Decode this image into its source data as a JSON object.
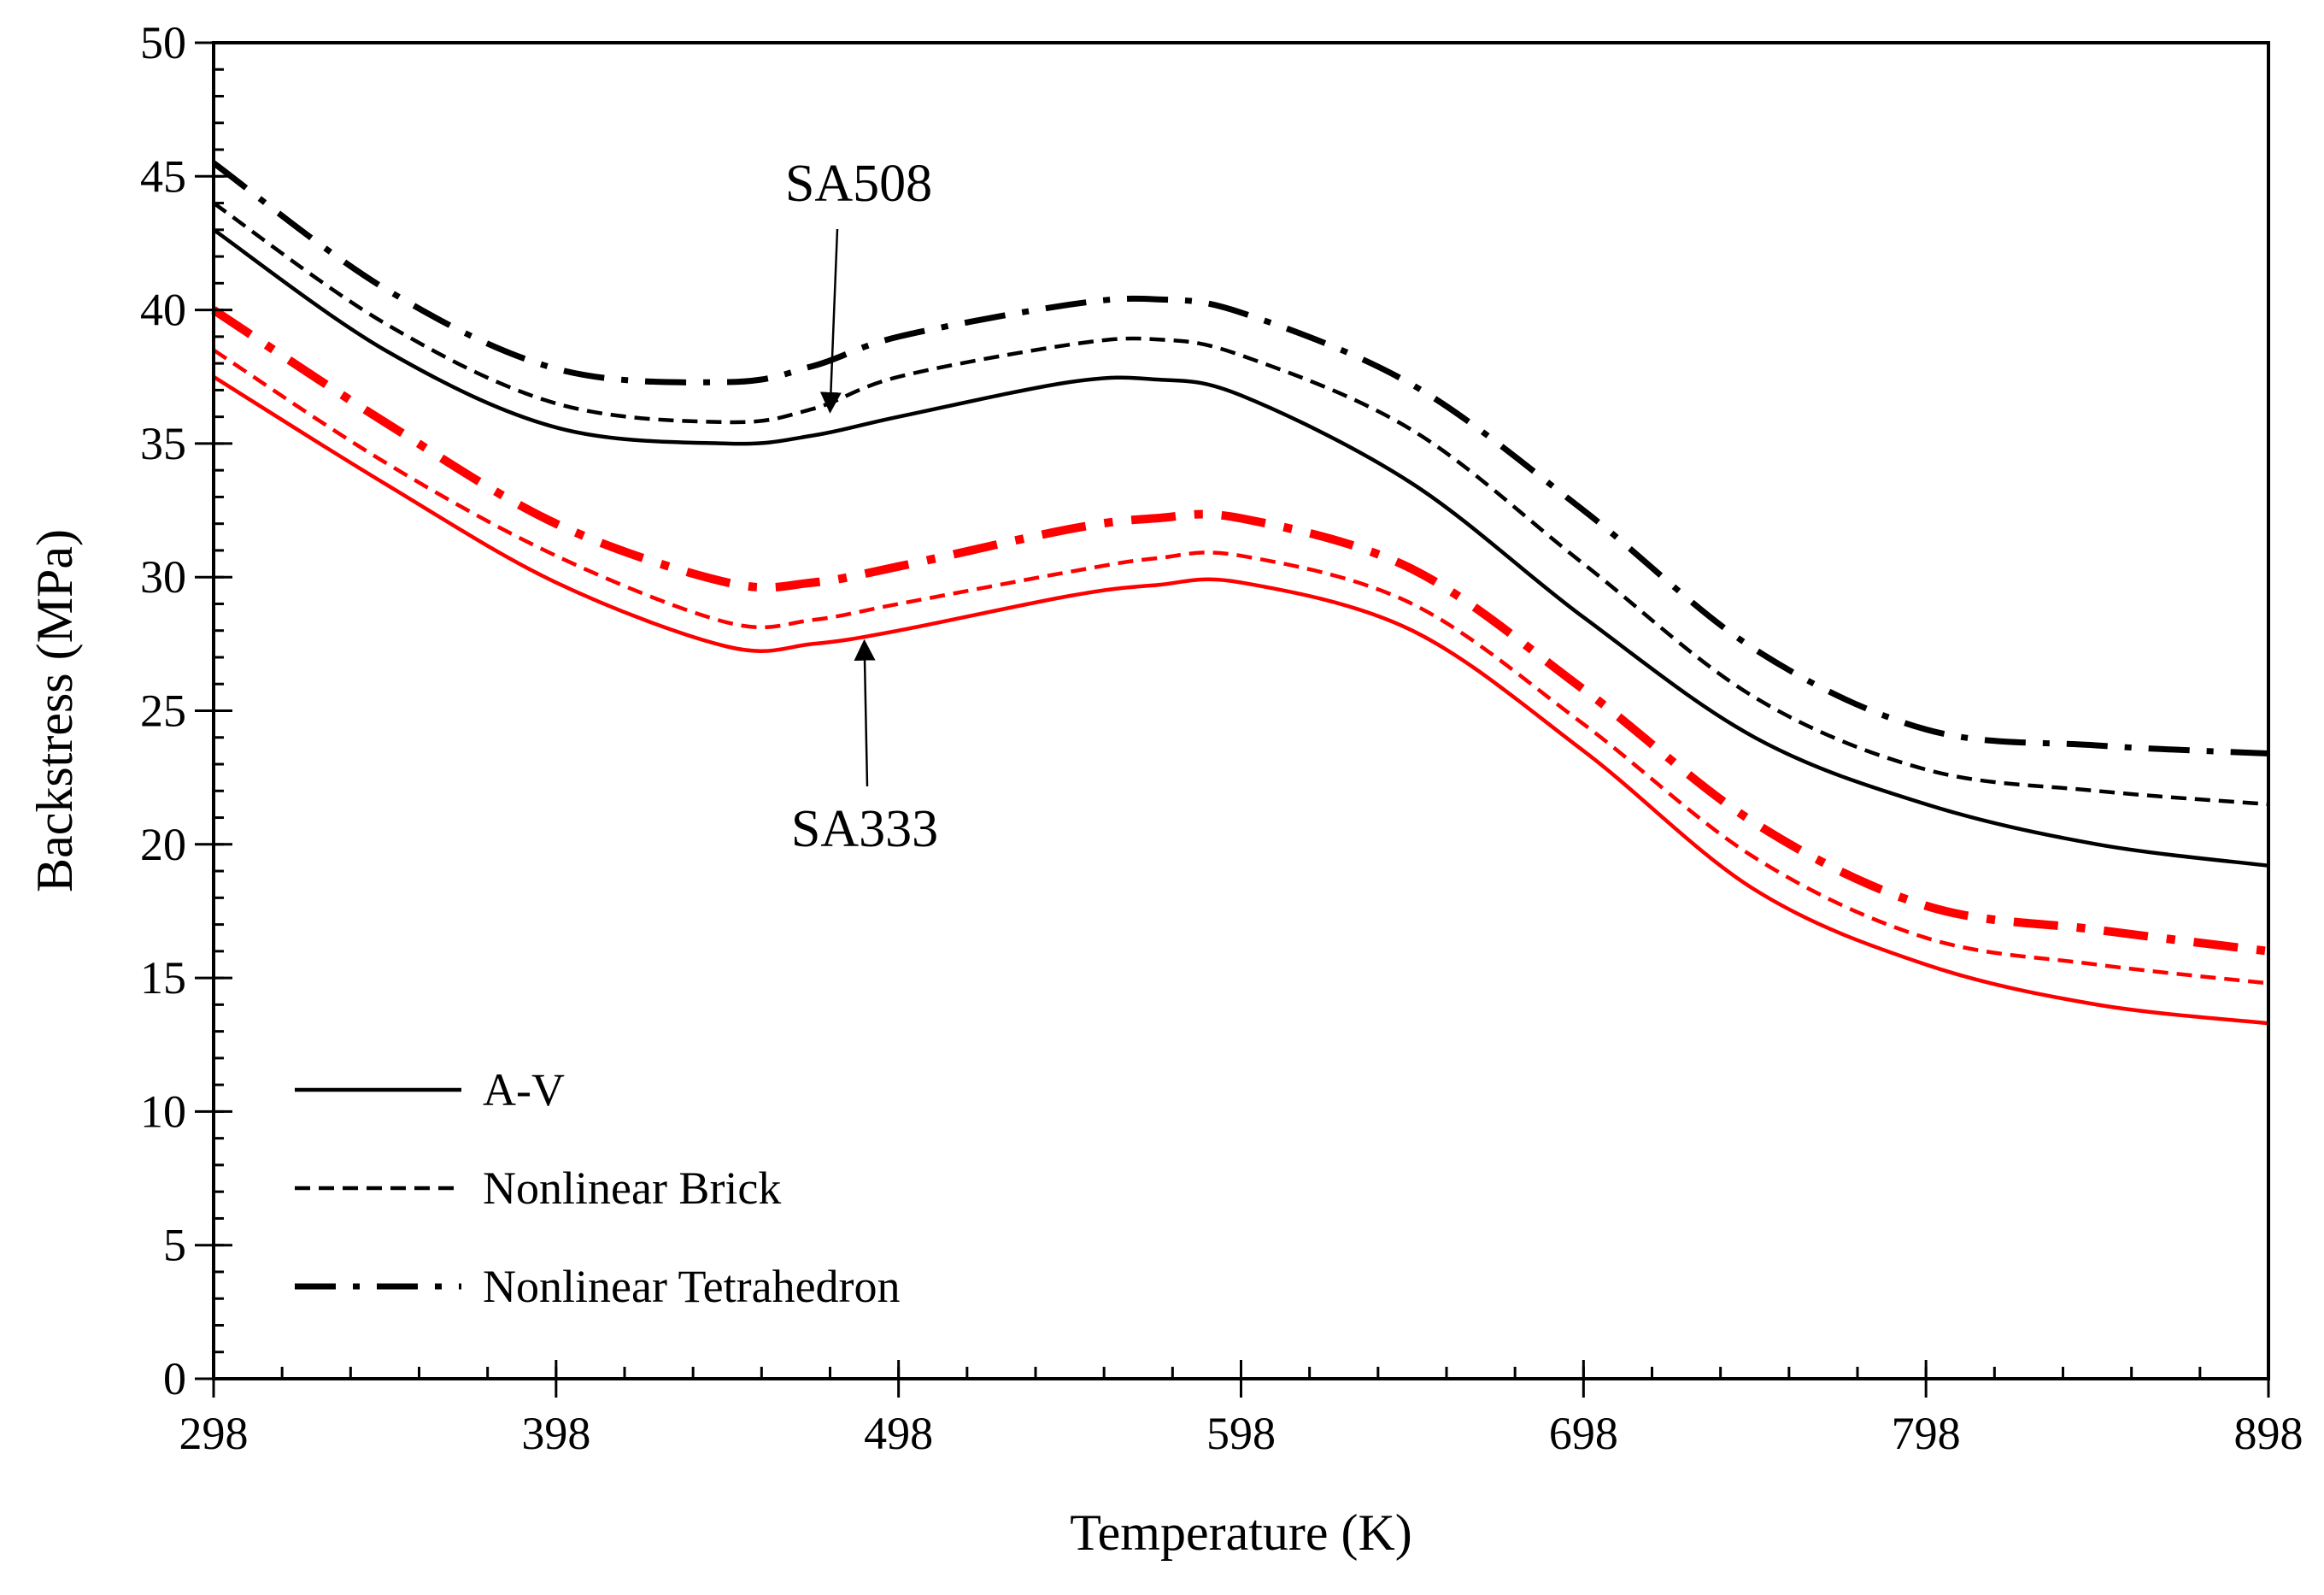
{
  "chart_data": {
    "type": "line",
    "title": "",
    "xlabel": "Temperature (K)",
    "ylabel": "Backstress (MPa)",
    "xlim": [
      298,
      898
    ],
    "ylim": [
      0,
      50
    ],
    "x_ticks": [
      298,
      398,
      498,
      598,
      698,
      798,
      898
    ],
    "y_ticks": [
      0,
      5,
      10,
      15,
      20,
      25,
      30,
      35,
      40,
      45,
      50
    ],
    "x_minor_step": 20,
    "y_minor_step": 1,
    "grid": false,
    "legend_position": "bottom-left",
    "legend": [
      {
        "label": "A-V",
        "style": "solid"
      },
      {
        "label": "Nonlinear Brick",
        "style": "dashed"
      },
      {
        "label": "Nonlinear Tetrahedron",
        "style": "dashdot"
      }
    ],
    "annotations": [
      {
        "text": "SA508",
        "points_to": {
          "x": 478,
          "y": 36.2
        }
      },
      {
        "text": "SA333",
        "points_to": {
          "x": 488,
          "y": 27.6
        }
      }
    ],
    "x": [
      298,
      348,
      398,
      448,
      473,
      498,
      548,
      573,
      598,
      648,
      698,
      748,
      798,
      848,
      898
    ],
    "series": [
      {
        "name": "SA508 A-V",
        "material": "SA508",
        "model": "A-V",
        "color": "#000000",
        "style": "solid",
        "values": [
          43.0,
          38.5,
          35.6,
          35.0,
          35.3,
          36.0,
          37.3,
          37.4,
          36.8,
          33.5,
          28.5,
          24.0,
          21.5,
          20.0,
          19.2
        ]
      },
      {
        "name": "SA508 Nonlinear Brick",
        "material": "SA508",
        "model": "Nonlinear Brick",
        "color": "#000000",
        "style": "dashed",
        "values": [
          44.0,
          39.5,
          36.5,
          35.8,
          36.3,
          37.5,
          38.7,
          38.9,
          38.3,
          35.5,
          30.5,
          25.5,
          22.8,
          22.0,
          21.5
        ]
      },
      {
        "name": "SA508 Nonlinear Tetrahedron",
        "material": "SA508",
        "model": "Nonlinear Tetrahedron",
        "color": "#000000",
        "style": "dashdot",
        "values": [
          45.5,
          40.8,
          37.8,
          37.3,
          37.9,
          39.0,
          40.2,
          40.4,
          39.9,
          37.2,
          32.5,
          27.3,
          24.3,
          23.7,
          23.4
        ]
      },
      {
        "name": "SA333 A-V",
        "material": "SA333",
        "model": "A-V",
        "color": "#ff0000",
        "style": "solid",
        "values": [
          37.5,
          33.5,
          29.8,
          27.4,
          27.5,
          28.0,
          29.3,
          29.7,
          29.8,
          28.0,
          23.5,
          18.3,
          15.5,
          14.0,
          13.3
        ]
      },
      {
        "name": "SA333 Nonlinear Brick",
        "material": "SA333",
        "model": "Nonlinear Brick",
        "color": "#ff0000",
        "style": "dashed",
        "values": [
          38.5,
          34.3,
          30.8,
          28.3,
          28.4,
          29.0,
          30.2,
          30.7,
          30.8,
          29.0,
          24.5,
          19.5,
          16.5,
          15.5,
          14.8
        ]
      },
      {
        "name": "SA333 Nonlinear Tetrahedron",
        "material": "SA333",
        "model": "Nonlinear Tetrahedron",
        "color": "#ff0000",
        "style": "dashdot",
        "values": [
          40.0,
          35.8,
          32.0,
          29.8,
          29.8,
          30.4,
          31.8,
          32.2,
          32.2,
          30.3,
          25.8,
          20.8,
          17.7,
          16.8,
          16.0
        ]
      }
    ]
  }
}
